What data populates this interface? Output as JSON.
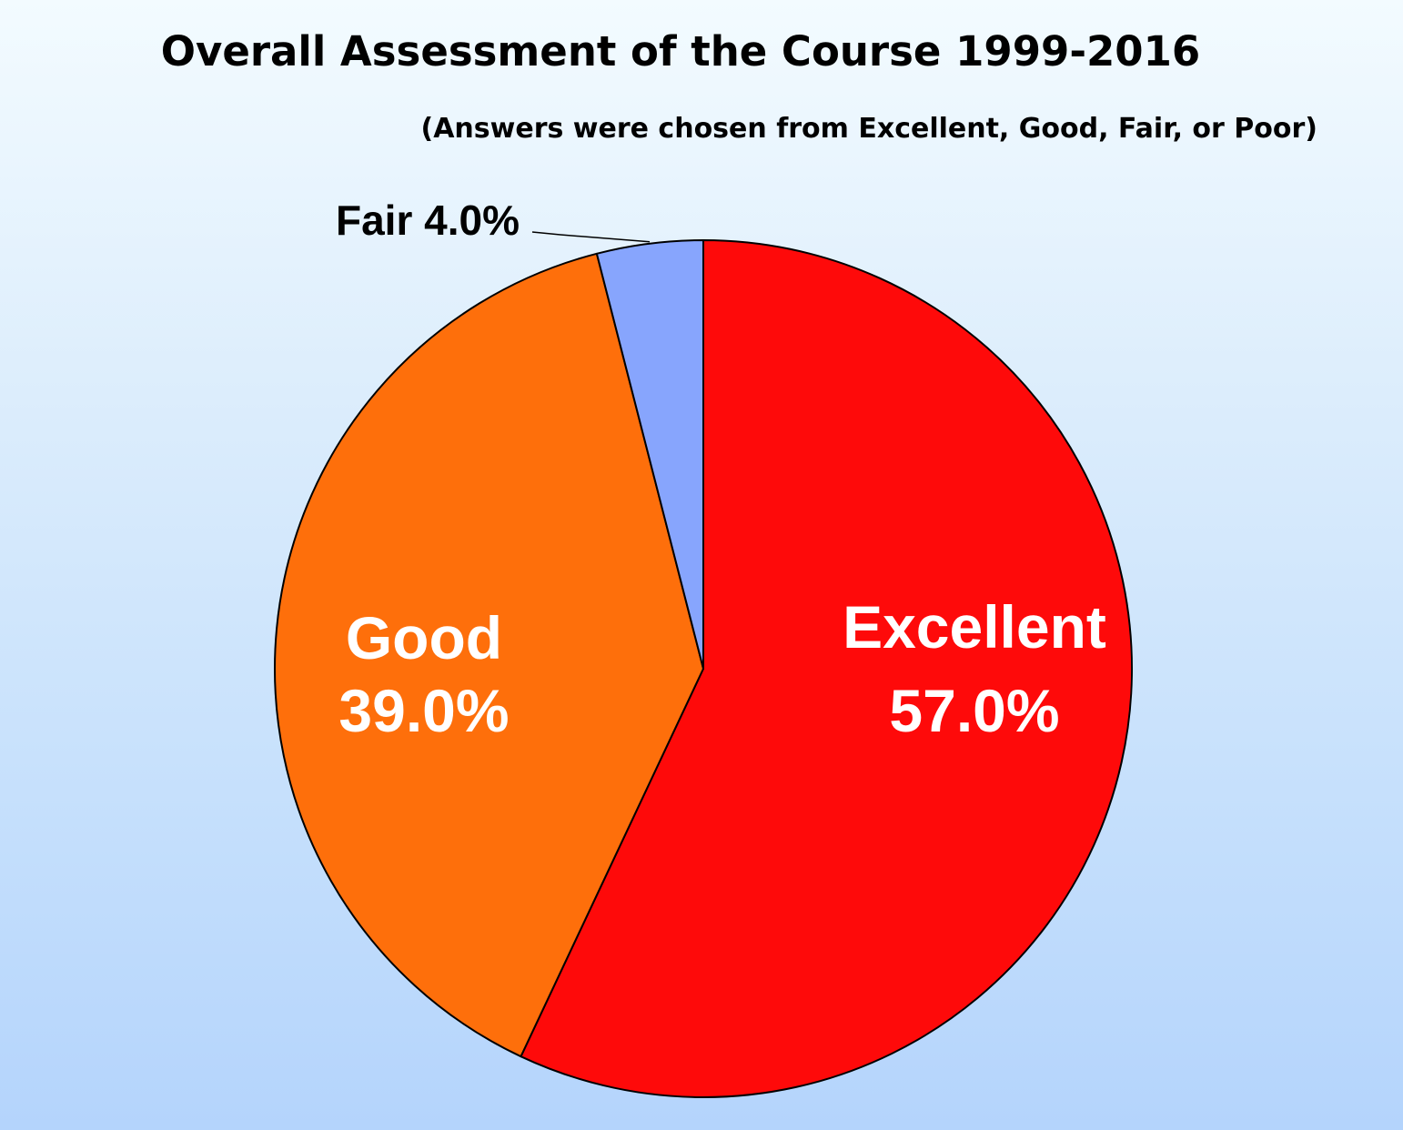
{
  "chart_data": {
    "type": "pie",
    "title": "Overall Assessment of the Course 1999-2016",
    "subtitle": "(Answers were chosen from Excellent, Good, Fair, or Poor)",
    "slices": [
      {
        "label": "Excellent",
        "value": 57.0,
        "display": "57.0%",
        "color": "#fe0a0a"
      },
      {
        "label": "Good",
        "value": 39.0,
        "display": "39.0%",
        "color": "#fe6f0b"
      },
      {
        "label": "Fair",
        "value": 4.0,
        "display": "4.0%",
        "color": "#87a5fd"
      }
    ],
    "outside_label": "Fair 4.0%",
    "legend": "none"
  }
}
